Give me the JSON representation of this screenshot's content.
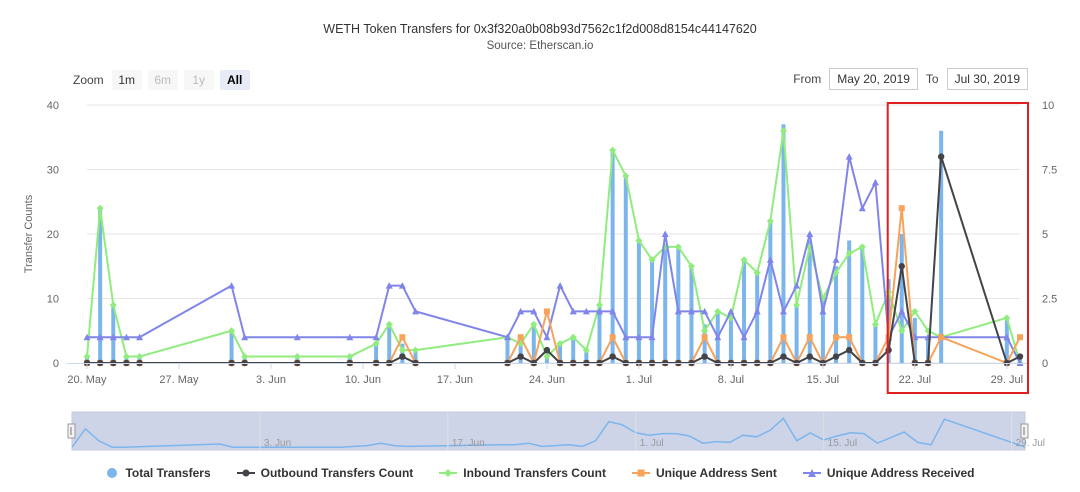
{
  "header": {
    "title": "WETH Token Transfers for 0x3f320a0b08b93d7562c1f2d008d8154c44147620",
    "subtitle": "Source: Etherscan.io"
  },
  "zoom": {
    "label": "Zoom",
    "buttons": [
      {
        "label": "1m",
        "state": "normal"
      },
      {
        "label": "6m",
        "state": "disabled"
      },
      {
        "label": "1y",
        "state": "disabled"
      },
      {
        "label": "All",
        "state": "active"
      }
    ]
  },
  "range": {
    "from_label": "From",
    "from_value": "May 20, 2019",
    "to_label": "To",
    "to_value": "Jul 30, 2019"
  },
  "colors": {
    "total": "#7cb5ec",
    "outbound": "#434348",
    "inbound": "#90ed7d",
    "sent": "#f7a35c",
    "received": "#8085e9",
    "highlight": "#e02020",
    "navigator_fill": "#cdd4e8"
  },
  "chart_data": {
    "type": "bar",
    "x_unit": "date",
    "x_start": "2019-05-20",
    "x_end": "2019-07-30",
    "ylabel": "Transfer Counts",
    "ylim": [
      0,
      40
    ],
    "y_ticks": [
      "0",
      "10",
      "20",
      "30",
      "40"
    ],
    "y2lim": [
      0,
      10
    ],
    "y2_ticks": [
      "0",
      "2.5",
      "5",
      "7.5",
      "10"
    ],
    "x_ticks": [
      {
        "date": "2019-05-20",
        "label": "20. May"
      },
      {
        "date": "2019-05-27",
        "label": "27. May"
      },
      {
        "date": "2019-06-03",
        "label": "3. Jun"
      },
      {
        "date": "2019-06-10",
        "label": "10. Jun"
      },
      {
        "date": "2019-06-17",
        "label": "17. Jun"
      },
      {
        "date": "2019-06-24",
        "label": "24. Jun"
      },
      {
        "date": "2019-07-01",
        "label": "1. Jul"
      },
      {
        "date": "2019-07-08",
        "label": "8. Jul"
      },
      {
        "date": "2019-07-15",
        "label": "15. Jul"
      },
      {
        "date": "2019-07-22",
        "label": "22. Jul"
      },
      {
        "date": "2019-07-29",
        "label": "29. Jul"
      }
    ],
    "navigator_ticks": [
      "3. Jun",
      "17. Jun",
      "1. Jul",
      "15. Jul",
      "29. Jul"
    ],
    "grid": true,
    "legend_position": "bottom",
    "series": [
      {
        "name": "Total Transfers",
        "kind": "bar",
        "axis": "left",
        "points": [
          [
            "2019-05-20",
            1
          ],
          [
            "2019-05-21",
            24
          ],
          [
            "2019-05-22",
            9
          ],
          [
            "2019-05-23",
            1
          ],
          [
            "2019-05-24",
            1
          ],
          [
            "2019-05-31",
            5
          ],
          [
            "2019-06-01",
            1
          ],
          [
            "2019-06-05",
            1
          ],
          [
            "2019-06-09",
            1
          ],
          [
            "2019-06-11",
            3
          ],
          [
            "2019-06-12",
            6
          ],
          [
            "2019-06-13",
            3
          ],
          [
            "2019-06-14",
            2
          ],
          [
            "2019-06-21",
            4
          ],
          [
            "2019-06-22",
            4
          ],
          [
            "2019-06-23",
            6
          ],
          [
            "2019-06-24",
            2
          ],
          [
            "2019-06-25",
            3
          ],
          [
            "2019-06-26",
            4
          ],
          [
            "2019-06-27",
            2
          ],
          [
            "2019-06-28",
            9
          ],
          [
            "2019-06-29",
            33
          ],
          [
            "2019-06-30",
            29
          ],
          [
            "2019-07-01",
            19
          ],
          [
            "2019-07-02",
            16
          ],
          [
            "2019-07-03",
            18
          ],
          [
            "2019-07-04",
            18
          ],
          [
            "2019-07-05",
            15
          ],
          [
            "2019-07-06",
            6
          ],
          [
            "2019-07-07",
            8
          ],
          [
            "2019-07-08",
            7
          ],
          [
            "2019-07-09",
            16
          ],
          [
            "2019-07-10",
            14
          ],
          [
            "2019-07-11",
            22
          ],
          [
            "2019-07-12",
            37
          ],
          [
            "2019-07-13",
            9
          ],
          [
            "2019-07-14",
            19
          ],
          [
            "2019-07-15",
            10
          ],
          [
            "2019-07-16",
            15
          ],
          [
            "2019-07-17",
            19
          ],
          [
            "2019-07-18",
            18
          ],
          [
            "2019-07-19",
            6
          ],
          [
            "2019-07-20",
            13
          ],
          [
            "2019-07-21",
            20
          ],
          [
            "2019-07-22",
            7
          ],
          [
            "2019-07-23",
            4
          ],
          [
            "2019-07-24",
            36
          ],
          [
            "2019-07-29",
            7
          ],
          [
            "2019-07-30",
            1
          ]
        ]
      },
      {
        "name": "Outbound Transfers Count",
        "kind": "line",
        "axis": "left",
        "points": [
          [
            "2019-05-20",
            0
          ],
          [
            "2019-05-21",
            0
          ],
          [
            "2019-05-22",
            0
          ],
          [
            "2019-05-23",
            0
          ],
          [
            "2019-05-24",
            0
          ],
          [
            "2019-05-31",
            0
          ],
          [
            "2019-06-01",
            0
          ],
          [
            "2019-06-05",
            0
          ],
          [
            "2019-06-09",
            0
          ],
          [
            "2019-06-11",
            0
          ],
          [
            "2019-06-12",
            0
          ],
          [
            "2019-06-13",
            1
          ],
          [
            "2019-06-14",
            0
          ],
          [
            "2019-06-21",
            0
          ],
          [
            "2019-06-22",
            1
          ],
          [
            "2019-06-23",
            0
          ],
          [
            "2019-06-24",
            2
          ],
          [
            "2019-06-25",
            0
          ],
          [
            "2019-06-26",
            0
          ],
          [
            "2019-06-27",
            0
          ],
          [
            "2019-06-28",
            0
          ],
          [
            "2019-06-29",
            1
          ],
          [
            "2019-06-30",
            0
          ],
          [
            "2019-07-01",
            0
          ],
          [
            "2019-07-02",
            0
          ],
          [
            "2019-07-03",
            0
          ],
          [
            "2019-07-04",
            0
          ],
          [
            "2019-07-05",
            0
          ],
          [
            "2019-07-06",
            1
          ],
          [
            "2019-07-07",
            0
          ],
          [
            "2019-07-08",
            0
          ],
          [
            "2019-07-09",
            0
          ],
          [
            "2019-07-10",
            0
          ],
          [
            "2019-07-11",
            0
          ],
          [
            "2019-07-12",
            1
          ],
          [
            "2019-07-13",
            0
          ],
          [
            "2019-07-14",
            1
          ],
          [
            "2019-07-15",
            0
          ],
          [
            "2019-07-16",
            1
          ],
          [
            "2019-07-17",
            2
          ],
          [
            "2019-07-18",
            0
          ],
          [
            "2019-07-19",
            0
          ],
          [
            "2019-07-20",
            2
          ],
          [
            "2019-07-21",
            15
          ],
          [
            "2019-07-22",
            0
          ],
          [
            "2019-07-23",
            0
          ],
          [
            "2019-07-24",
            32
          ],
          [
            "2019-07-29",
            0
          ],
          [
            "2019-07-30",
            1
          ]
        ]
      },
      {
        "name": "Inbound Transfers Count",
        "kind": "line",
        "axis": "left",
        "points": [
          [
            "2019-05-20",
            1
          ],
          [
            "2019-05-21",
            24
          ],
          [
            "2019-05-22",
            9
          ],
          [
            "2019-05-23",
            1
          ],
          [
            "2019-05-24",
            1
          ],
          [
            "2019-05-31",
            5
          ],
          [
            "2019-06-01",
            1
          ],
          [
            "2019-06-05",
            1
          ],
          [
            "2019-06-09",
            1
          ],
          [
            "2019-06-11",
            3
          ],
          [
            "2019-06-12",
            6
          ],
          [
            "2019-06-13",
            2
          ],
          [
            "2019-06-14",
            2
          ],
          [
            "2019-06-21",
            4
          ],
          [
            "2019-06-22",
            3
          ],
          [
            "2019-06-23",
            6
          ],
          [
            "2019-06-24",
            1
          ],
          [
            "2019-06-25",
            3
          ],
          [
            "2019-06-26",
            4
          ],
          [
            "2019-06-27",
            2
          ],
          [
            "2019-06-28",
            9
          ],
          [
            "2019-06-29",
            33
          ],
          [
            "2019-06-30",
            29
          ],
          [
            "2019-07-01",
            19
          ],
          [
            "2019-07-02",
            16
          ],
          [
            "2019-07-03",
            18
          ],
          [
            "2019-07-04",
            18
          ],
          [
            "2019-07-05",
            15
          ],
          [
            "2019-07-06",
            5
          ],
          [
            "2019-07-07",
            8
          ],
          [
            "2019-07-08",
            7
          ],
          [
            "2019-07-09",
            16
          ],
          [
            "2019-07-10",
            14
          ],
          [
            "2019-07-11",
            22
          ],
          [
            "2019-07-12",
            36
          ],
          [
            "2019-07-13",
            9
          ],
          [
            "2019-07-14",
            18
          ],
          [
            "2019-07-15",
            10
          ],
          [
            "2019-07-16",
            14
          ],
          [
            "2019-07-17",
            17
          ],
          [
            "2019-07-18",
            18
          ],
          [
            "2019-07-19",
            6
          ],
          [
            "2019-07-20",
            11
          ],
          [
            "2019-07-21",
            5
          ],
          [
            "2019-07-22",
            8
          ],
          [
            "2019-07-23",
            5
          ],
          [
            "2019-07-24",
            4
          ],
          [
            "2019-07-29",
            7
          ],
          [
            "2019-07-30",
            0
          ]
        ]
      },
      {
        "name": "Unique Address Sent",
        "kind": "line",
        "axis": "right",
        "points": [
          [
            "2019-05-20",
            0
          ],
          [
            "2019-05-21",
            0
          ],
          [
            "2019-05-22",
            0
          ],
          [
            "2019-05-23",
            0
          ],
          [
            "2019-05-24",
            0
          ],
          [
            "2019-05-31",
            0
          ],
          [
            "2019-06-01",
            0
          ],
          [
            "2019-06-05",
            0
          ],
          [
            "2019-06-09",
            0
          ],
          [
            "2019-06-11",
            0
          ],
          [
            "2019-06-12",
            0
          ],
          [
            "2019-06-13",
            1
          ],
          [
            "2019-06-14",
            0
          ],
          [
            "2019-06-21",
            0
          ],
          [
            "2019-06-22",
            1
          ],
          [
            "2019-06-23",
            0
          ],
          [
            "2019-06-24",
            2
          ],
          [
            "2019-06-25",
            0
          ],
          [
            "2019-06-26",
            0
          ],
          [
            "2019-06-27",
            0
          ],
          [
            "2019-06-28",
            0
          ],
          [
            "2019-06-29",
            1
          ],
          [
            "2019-06-30",
            0
          ],
          [
            "2019-07-01",
            0
          ],
          [
            "2019-07-02",
            0
          ],
          [
            "2019-07-03",
            0
          ],
          [
            "2019-07-04",
            0
          ],
          [
            "2019-07-05",
            0
          ],
          [
            "2019-07-06",
            1
          ],
          [
            "2019-07-07",
            0
          ],
          [
            "2019-07-08",
            0
          ],
          [
            "2019-07-09",
            0
          ],
          [
            "2019-07-10",
            0
          ],
          [
            "2019-07-11",
            0
          ],
          [
            "2019-07-12",
            1
          ],
          [
            "2019-07-13",
            0
          ],
          [
            "2019-07-14",
            1
          ],
          [
            "2019-07-15",
            0
          ],
          [
            "2019-07-16",
            1
          ],
          [
            "2019-07-17",
            1
          ],
          [
            "2019-07-18",
            0
          ],
          [
            "2019-07-19",
            0
          ],
          [
            "2019-07-20",
            1
          ],
          [
            "2019-07-21",
            6
          ],
          [
            "2019-07-22",
            0
          ],
          [
            "2019-07-23",
            0
          ],
          [
            "2019-07-24",
            1
          ],
          [
            "2019-07-29",
            0
          ],
          [
            "2019-07-30",
            1
          ]
        ]
      },
      {
        "name": "Unique Address Received",
        "kind": "line",
        "axis": "right",
        "points": [
          [
            "2019-05-20",
            1
          ],
          [
            "2019-05-21",
            1
          ],
          [
            "2019-05-22",
            1
          ],
          [
            "2019-05-23",
            1
          ],
          [
            "2019-05-24",
            1
          ],
          [
            "2019-05-31",
            3
          ],
          [
            "2019-06-01",
            1
          ],
          [
            "2019-06-05",
            1
          ],
          [
            "2019-06-09",
            1
          ],
          [
            "2019-06-11",
            1
          ],
          [
            "2019-06-12",
            3
          ],
          [
            "2019-06-13",
            3
          ],
          [
            "2019-06-14",
            2
          ],
          [
            "2019-06-21",
            1
          ],
          [
            "2019-06-22",
            2
          ],
          [
            "2019-06-23",
            2
          ],
          [
            "2019-06-24",
            1
          ],
          [
            "2019-06-25",
            3
          ],
          [
            "2019-06-26",
            2
          ],
          [
            "2019-06-27",
            2
          ],
          [
            "2019-06-28",
            2
          ],
          [
            "2019-06-29",
            2
          ],
          [
            "2019-06-30",
            1
          ],
          [
            "2019-07-01",
            1
          ],
          [
            "2019-07-02",
            1
          ],
          [
            "2019-07-03",
            5
          ],
          [
            "2019-07-04",
            2
          ],
          [
            "2019-07-05",
            2
          ],
          [
            "2019-07-06",
            2
          ],
          [
            "2019-07-07",
            1
          ],
          [
            "2019-07-08",
            2
          ],
          [
            "2019-07-09",
            1
          ],
          [
            "2019-07-10",
            2
          ],
          [
            "2019-07-11",
            4
          ],
          [
            "2019-07-12",
            2
          ],
          [
            "2019-07-13",
            3
          ],
          [
            "2019-07-14",
            5
          ],
          [
            "2019-07-15",
            2
          ],
          [
            "2019-07-16",
            4
          ],
          [
            "2019-07-17",
            8
          ],
          [
            "2019-07-18",
            6
          ],
          [
            "2019-07-19",
            7
          ],
          [
            "2019-07-20",
            1
          ],
          [
            "2019-07-21",
            2
          ],
          [
            "2019-07-22",
            1
          ],
          [
            "2019-07-23",
            1
          ],
          [
            "2019-07-24",
            1
          ],
          [
            "2019-07-29",
            1
          ],
          [
            "2019-07-30",
            0
          ]
        ]
      }
    ],
    "highlight_range": [
      "2019-07-21",
      "2019-07-30"
    ]
  }
}
